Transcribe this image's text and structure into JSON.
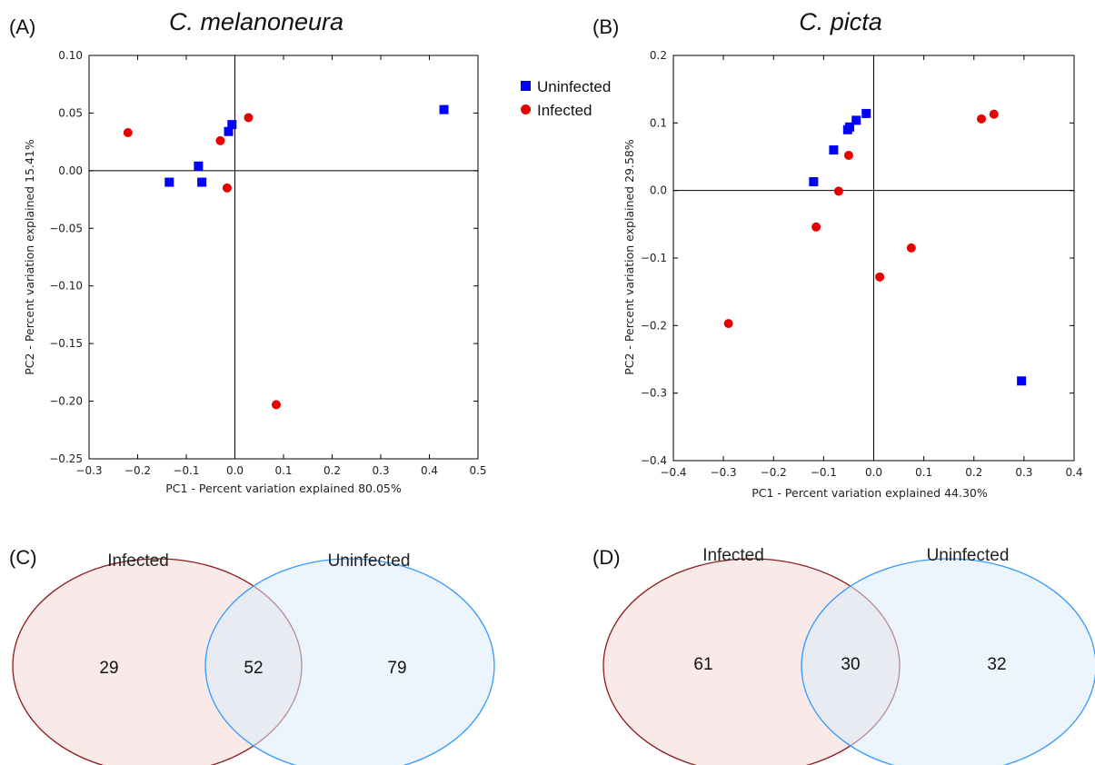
{
  "panels": {
    "a": "(A)",
    "b": "(B)",
    "c": "(C)",
    "d": "(D)"
  },
  "legend": {
    "uninfected": "Uninfected",
    "infected": "Infected",
    "uninfected_color": "#0000ff",
    "infected_color": "#e60000",
    "uninfected_marker": "square",
    "infected_marker": "circle"
  },
  "chart_data": [
    {
      "type": "scatter",
      "title": "C. melanoneura",
      "xlabel": "PC1 - Percent variation explained 80.05%",
      "ylabel": "PC2 - Percent variation explained 15.41%",
      "xlim": [
        -0.3,
        0.5
      ],
      "ylim": [
        -0.25,
        0.1
      ],
      "xticks": [
        "−0.3",
        "−0.2",
        "−0.1",
        "0.0",
        "0.1",
        "0.2",
        "0.3",
        "0.4",
        "0.5"
      ],
      "yticks": [
        "0.10",
        "0.05",
        "0.00",
        "−0.05",
        "−0.10",
        "−0.15",
        "−0.20",
        "−0.25"
      ],
      "grid": false,
      "legend_position": "right",
      "series": [
        {
          "name": "Uninfected",
          "color": "#0000ff",
          "marker": "square",
          "x": [
            -0.135,
            -0.075,
            -0.068,
            -0.013,
            -0.006,
            0.43
          ],
          "y": [
            -0.01,
            0.004,
            -0.01,
            0.034,
            0.04,
            0.053
          ]
        },
        {
          "name": "Infected",
          "color": "#e60000",
          "marker": "circle",
          "x": [
            -0.22,
            -0.03,
            -0.016,
            0.028,
            0.085
          ],
          "y": [
            0.033,
            0.026,
            -0.015,
            0.046,
            -0.203
          ]
        }
      ]
    },
    {
      "type": "scatter",
      "title": "C. picta",
      "xlabel": "PC1 - Percent variation explained 44.30%",
      "ylabel": "PC2 - Percent variation explained 29.58%",
      "xlim": [
        -0.4,
        0.4
      ],
      "ylim": [
        -0.4,
        0.2
      ],
      "xticks": [
        "−0.4",
        "−0.3",
        "−0.2",
        "−0.1",
        "0.0",
        "0.1",
        "0.2",
        "0.3",
        "0.4"
      ],
      "yticks": [
        "0.2",
        "0.1",
        "0.0",
        "−0.1",
        "−0.2",
        "−0.3",
        "−0.4"
      ],
      "grid": false,
      "series": [
        {
          "name": "Uninfected",
          "color": "#0000ff",
          "marker": "square",
          "x": [
            -0.12,
            -0.08,
            -0.052,
            -0.048,
            -0.035,
            -0.015,
            0.295
          ],
          "y": [
            0.013,
            0.06,
            0.09,
            0.094,
            0.104,
            0.114,
            -0.282
          ]
        },
        {
          "name": "Infected",
          "color": "#e60000",
          "marker": "circle",
          "x": [
            -0.29,
            -0.115,
            -0.07,
            -0.05,
            0.012,
            0.075,
            0.215,
            0.24
          ],
          "y": [
            -0.197,
            -0.054,
            -0.001,
            0.052,
            -0.128,
            -0.085,
            0.106,
            0.113
          ]
        }
      ]
    }
  ],
  "venn": [
    {
      "left_label": "Infected",
      "right_label": "Uninfected",
      "left_only": "29",
      "shared": "52",
      "right_only": "79",
      "left_color": "#8b1a1a",
      "right_color": "#3399ff"
    },
    {
      "left_label": "Infected",
      "right_label": "Uninfected",
      "left_only": "61",
      "shared": "30",
      "right_only": "32",
      "left_color": "#8b1a1a",
      "right_color": "#3399ff"
    }
  ]
}
